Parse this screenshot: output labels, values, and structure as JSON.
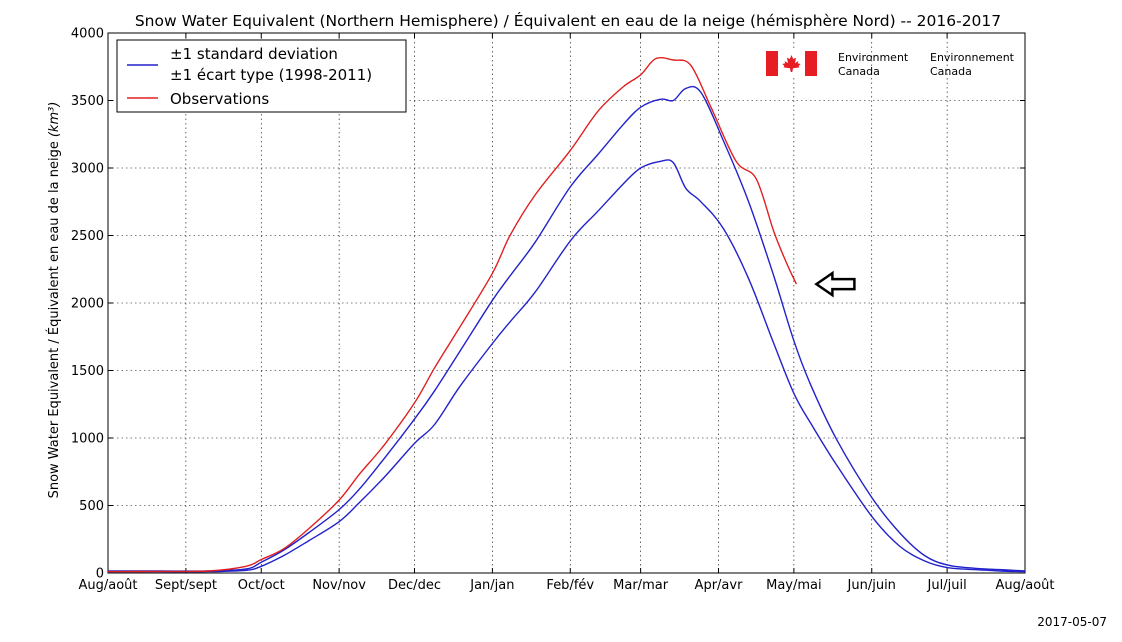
{
  "chart_data": {
    "type": "line",
    "title": "Snow Water Equivalent (Northern Hemisphere) / Équivalent en eau de la neige (hémisphère Nord) -- 2016-2017",
    "ylabel": "Snow Water Equivalent / Équivalent en eau de la neige",
    "ylabel_unit": "km³",
    "ylim": [
      0,
      4000
    ],
    "yticks": [
      0,
      500,
      1000,
      1500,
      2000,
      2500,
      3000,
      3500,
      4000
    ],
    "xlim": [
      0,
      365
    ],
    "xticks": [
      {
        "x": 0,
        "label": "Aug/août"
      },
      {
        "x": 31,
        "label": "Sept/sept"
      },
      {
        "x": 61,
        "label": "Oct/oct"
      },
      {
        "x": 92,
        "label": "Nov/nov"
      },
      {
        "x": 122,
        "label": "Dec/dec"
      },
      {
        "x": 153,
        "label": "Jan/jan"
      },
      {
        "x": 184,
        "label": "Feb/fév"
      },
      {
        "x": 212,
        "label": "Mar/mar"
      },
      {
        "x": 243,
        "label": "Apr/avr"
      },
      {
        "x": 273,
        "label": "May/mai"
      },
      {
        "x": 304,
        "label": "Jun/juin"
      },
      {
        "x": 334,
        "label": "Jul/juil"
      },
      {
        "x": 365,
        "label": "Aug/août"
      }
    ],
    "grid": true,
    "legend": {
      "placement": "top-left",
      "entries": [
        {
          "label_line1": "±1 standard deviation",
          "label_line2": "±1 écart type (1998-2011)",
          "color": "#2222cc"
        },
        {
          "label_line1": "Observations",
          "color": "#e02020"
        }
      ]
    },
    "series": [
      {
        "name": "±1 standard deviation ±1 écart type (1998-2011)",
        "role": "upper",
        "color": "#2222cc",
        "x": [
          0,
          20,
          40,
          55,
          61,
          70,
          80,
          92,
          100,
          110,
          122,
          130,
          140,
          153,
          160,
          170,
          184,
          195,
          205,
          212,
          220,
          225,
          230,
          236,
          245,
          255,
          265,
          273,
          280,
          290,
          304,
          315,
          325,
          334,
          345,
          355,
          365
        ],
        "y": [
          15,
          15,
          15,
          30,
          80,
          170,
          300,
          470,
          620,
          850,
          1140,
          1350,
          1640,
          2020,
          2200,
          2450,
          2860,
          3100,
          3320,
          3450,
          3510,
          3500,
          3590,
          3560,
          3200,
          2750,
          2200,
          1720,
          1380,
          990,
          560,
          300,
          130,
          60,
          35,
          25,
          15
        ]
      },
      {
        "name": "±1 standard deviation ±1 écart type (1998-2011)",
        "role": "lower",
        "color": "#2222cc",
        "x": [
          0,
          20,
          40,
          55,
          61,
          70,
          80,
          92,
          100,
          110,
          122,
          130,
          140,
          153,
          160,
          170,
          184,
          195,
          205,
          212,
          220,
          225,
          230,
          236,
          245,
          255,
          265,
          273,
          280,
          290,
          304,
          315,
          325,
          334,
          345,
          355,
          365
        ],
        "y": [
          10,
          10,
          10,
          20,
          50,
          130,
          240,
          380,
          520,
          710,
          960,
          1100,
          1380,
          1700,
          1860,
          2080,
          2460,
          2680,
          2880,
          3000,
          3050,
          3040,
          2850,
          2750,
          2550,
          2180,
          1700,
          1330,
          1100,
          800,
          420,
          200,
          90,
          40,
          25,
          15,
          10
        ]
      },
      {
        "name": "Observations",
        "role": "observed",
        "color": "#e02020",
        "x": [
          0,
          20,
          40,
          55,
          61,
          70,
          80,
          92,
          100,
          110,
          122,
          130,
          140,
          153,
          160,
          170,
          184,
          195,
          205,
          212,
          218,
          225,
          232,
          240,
          250,
          258,
          265,
          270,
          274
        ],
        "y": [
          10,
          12,
          15,
          50,
          100,
          180,
          330,
          540,
          730,
          950,
          1260,
          1520,
          1820,
          2220,
          2500,
          2800,
          3130,
          3420,
          3600,
          3690,
          3810,
          3800,
          3760,
          3450,
          3050,
          2920,
          2530,
          2300,
          2140
        ]
      }
    ],
    "annotations": [
      {
        "type": "arrow",
        "direction": "left",
        "x": 278,
        "y": 2140,
        "style": "hollow",
        "color": "#000000"
      }
    ],
    "logo": {
      "country": "Canada",
      "text_en_line1": "Environment",
      "text_en_line2": "Canada",
      "text_fr_line1": "Environnement",
      "text_fr_line2": "Canada",
      "flag_color": "#e61d23"
    },
    "date_stamp": "2017-05-07"
  }
}
